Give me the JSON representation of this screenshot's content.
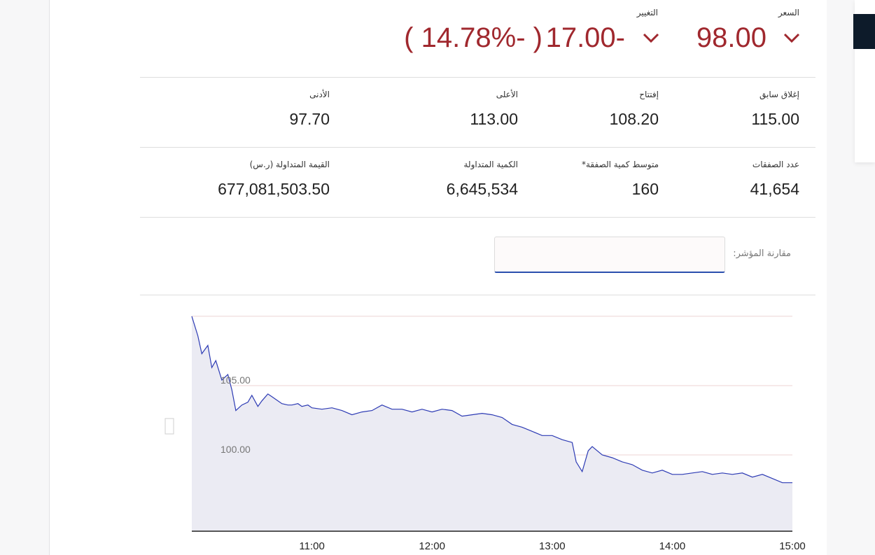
{
  "quote": {
    "price_label": "السعر",
    "price": "98.00",
    "change_label": "التغيير",
    "change": "17.00-",
    "change_pct": "( 14.78%- )",
    "down_color": "#a0282e"
  },
  "stats_row1": [
    {
      "label": "إغلاق سابق",
      "value": "115.00"
    },
    {
      "label": "إفتتاح",
      "value": "108.20"
    },
    {
      "label": "الأعلى",
      "value": "113.00"
    },
    {
      "label": "الأدنى",
      "value": "97.70"
    }
  ],
  "stats_row2": [
    {
      "label": "عدد الصفقات",
      "value": "41,654"
    },
    {
      "label": "متوسط كمية الصفقة*",
      "value": "160"
    },
    {
      "label": "الكمية المتداولة",
      "value": "6,645,534"
    },
    {
      "label": "القيمة المتداولة (ر.س)",
      "value": "677,081,503.50"
    }
  ],
  "compare": {
    "label": "مقارنة المؤشر:",
    "value": ""
  },
  "chart_data": {
    "type": "area",
    "x_ticks": [
      "11:00",
      "12:00",
      "13:00",
      "14:00",
      "15:00"
    ],
    "y_ticks": [
      "105.00",
      "100.00"
    ],
    "y_ticks_values": [
      105,
      100
    ],
    "ylim": [
      94.5,
      110.5
    ],
    "xlim": [
      "10:00",
      "15:00"
    ],
    "grid": true,
    "line_color": "#2d3bb4",
    "fill_color": "#ebebf3",
    "series": [
      {
        "x": [
          "10:00",
          "10:03",
          "10:05",
          "10:08",
          "10:10",
          "10:12",
          "10:15",
          "10:18",
          "10:20",
          "10:22",
          "10:25",
          "10:28",
          "10:30",
          "10:33",
          "10:35",
          "10:38",
          "10:40",
          "10:43",
          "10:45",
          "10:48",
          "10:50",
          "10:53",
          "10:55",
          "10:58",
          "11:00",
          "11:05",
          "11:10",
          "11:15",
          "11:20",
          "11:25",
          "11:30",
          "11:35",
          "11:40",
          "11:45",
          "11:50",
          "11:55",
          "12:00",
          "12:05",
          "12:10",
          "12:15",
          "12:20",
          "12:25",
          "12:30",
          "12:35",
          "12:40",
          "12:45",
          "12:50",
          "12:55",
          "13:00",
          "13:05",
          "13:10",
          "13:12",
          "13:15",
          "13:18",
          "13:20",
          "13:25",
          "13:30",
          "13:35",
          "13:40",
          "13:45",
          "13:50",
          "13:55",
          "14:00",
          "14:05",
          "14:10",
          "14:15",
          "14:20",
          "14:25",
          "14:30",
          "14:35",
          "14:40",
          "14:45",
          "14:50",
          "14:55",
          "15:00"
        ],
        "y": [
          110.0,
          108.6,
          107.3,
          107.9,
          106.3,
          106.8,
          105.4,
          105.8,
          104.7,
          103.2,
          103.6,
          103.8,
          104.3,
          103.5,
          103.9,
          104.4,
          104.2,
          103.9,
          103.7,
          103.6,
          103.6,
          103.7,
          103.5,
          103.6,
          103.4,
          103.3,
          103.4,
          103.2,
          102.9,
          103.1,
          103.2,
          103.6,
          103.3,
          103.3,
          103.1,
          103.3,
          103.1,
          103.3,
          103.2,
          102.8,
          102.9,
          103.0,
          102.9,
          102.7,
          102.2,
          102.0,
          101.7,
          101.4,
          101.4,
          101.1,
          100.9,
          99.5,
          98.8,
          100.3,
          100.6,
          100.0,
          99.8,
          99.5,
          99.3,
          98.9,
          98.7,
          98.9,
          98.6,
          98.6,
          98.7,
          98.8,
          98.6,
          98.7,
          98.6,
          98.7,
          98.4,
          98.6,
          98.3,
          98.0,
          98.0
        ]
      }
    ]
  }
}
